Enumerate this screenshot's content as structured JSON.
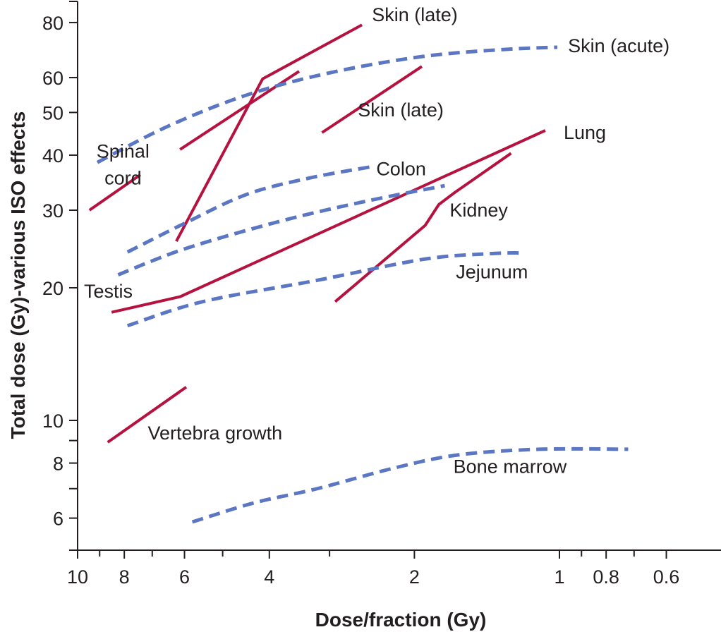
{
  "chart_data": {
    "type": "line",
    "title": "",
    "xlabel": "Dose/fraction (Gy)",
    "ylabel": "Total dose (Gy)-various ISO effects",
    "xscale": "log",
    "yscale": "log",
    "x_reversed": true,
    "xlim": [
      10,
      0.47
    ],
    "ylim": [
      5.0,
      98
    ],
    "grid": false,
    "legend": "none (curves labeled directly)",
    "x_ticks": [
      {
        "value": 10,
        "label": "10"
      },
      {
        "value": 9,
        "label": ""
      },
      {
        "value": 8,
        "label": "8"
      },
      {
        "value": 7,
        "label": ""
      },
      {
        "value": 6,
        "label": "6"
      },
      {
        "value": 5,
        "label": ""
      },
      {
        "value": 4,
        "label": "4"
      },
      {
        "value": 3,
        "label": ""
      },
      {
        "value": 2,
        "label": "2"
      },
      {
        "value": 1,
        "label": "1"
      },
      {
        "value": 0.9,
        "label": ""
      },
      {
        "value": 0.8,
        "label": "0.8"
      },
      {
        "value": 0.7,
        "label": ""
      },
      {
        "value": 0.6,
        "label": "0.6"
      }
    ],
    "y_ticks": [
      {
        "value": 80,
        "label": "80"
      },
      {
        "value": 60,
        "label": "60"
      },
      {
        "value": 50,
        "label": "50"
      },
      {
        "value": 40,
        "label": "40"
      },
      {
        "value": 30,
        "label": "30"
      },
      {
        "value": 20,
        "label": "20"
      },
      {
        "value": 10,
        "label": "10"
      },
      {
        "value": 9,
        "label": ""
      },
      {
        "value": 8,
        "label": "8"
      },
      {
        "value": 7,
        "label": ""
      },
      {
        "value": 6,
        "label": "6"
      }
    ],
    "colors": {
      "late_effect": "#b5123f",
      "acute_effect": "#5b76c2",
      "text": "#231f20"
    },
    "series": [
      {
        "name": "Skin (late)",
        "kind": "late",
        "style": "solid",
        "points": [
          [
            6.24,
            25.5
          ],
          [
            4.13,
            59.6
          ],
          [
            2.57,
            79.0
          ]
        ],
        "label": {
          "text": "Skin (late)",
          "at": [
            2.45,
            80.5
          ]
        }
      },
      {
        "name": "Spinal cord (upper)",
        "kind": "late",
        "style": "solid",
        "points": [
          [
            6.13,
            41.2
          ],
          [
            3.47,
            62.0
          ]
        ],
        "label": null
      },
      {
        "name": "Skin (late) 2",
        "kind": "late",
        "style": "solid",
        "points": [
          [
            3.11,
            45.0
          ],
          [
            1.93,
            63.6
          ]
        ],
        "label": {
          "text": "Skin (late)",
          "at": [
            2.62,
            49.0
          ]
        }
      },
      {
        "name": "Spinal cord",
        "kind": "late",
        "style": "solid",
        "points": [
          [
            9.45,
            30.0
          ],
          [
            7.41,
            36.1
          ]
        ],
        "label": {
          "text": "Spinal",
          "text2": "cord",
          "at": [
            8.05,
            39.5
          ]
        }
      },
      {
        "name": "Lung",
        "kind": "late",
        "style": "solid",
        "points": [
          [
            8.5,
            17.6
          ],
          [
            6.12,
            19.1
          ],
          [
            1.07,
            45.5
          ]
        ],
        "label": {
          "text": "Lung",
          "at": [
            0.98,
            43.5
          ]
        }
      },
      {
        "name": "Kidney",
        "kind": "late",
        "style": "solid",
        "points": [
          [
            2.92,
            18.6
          ],
          [
            1.9,
            27.7
          ],
          [
            1.78,
            30.9
          ],
          [
            1.65,
            32.9
          ],
          [
            1.26,
            40.4
          ]
        ],
        "label": {
          "text": "Kidney",
          "at": [
            1.69,
            29.0
          ]
        }
      },
      {
        "name": "Vertebra growth",
        "kind": "late",
        "style": "solid",
        "points": [
          [
            8.66,
            8.92
          ],
          [
            5.95,
            11.9
          ]
        ],
        "label": {
          "text": "Vertebra growth",
          "at": [
            7.15,
            9.05
          ]
        }
      },
      {
        "name": "Skin (acute)",
        "kind": "acute",
        "style": "dashed",
        "points": [
          [
            9.1,
            38.5
          ],
          [
            6.5,
            46.5
          ],
          [
            4.45,
            54.8
          ],
          [
            3.0,
            61.5
          ],
          [
            1.92,
            67.0
          ],
          [
            1.3,
            69.5
          ],
          [
            1.01,
            70.3
          ]
        ],
        "label": {
          "text": "Skin (acute)",
          "at": [
            0.96,
            68.5
          ]
        }
      },
      {
        "name": "Colon",
        "kind": "acute",
        "style": "dashed",
        "points": [
          [
            7.88,
            24.1
          ],
          [
            6.0,
            28.0
          ],
          [
            4.45,
            32.6
          ],
          [
            3.3,
            35.5
          ],
          [
            2.47,
            37.6
          ]
        ],
        "label": {
          "text": "Colon",
          "at": [
            2.4,
            36.0
          ]
        }
      },
      {
        "name": "Testis",
        "kind": "acute",
        "style": "dashed",
        "points": [
          [
            8.24,
            21.4
          ],
          [
            6.0,
            24.5
          ],
          [
            3.76,
            28.4
          ],
          [
            2.5,
            31.5
          ],
          [
            1.73,
            34.1
          ]
        ],
        "label": {
          "text": "Testis",
          "at": [
            9.7,
            19.0
          ]
        }
      },
      {
        "name": "Jejunum",
        "kind": "acute",
        "style": "dashed",
        "points": [
          [
            7.88,
            16.4
          ],
          [
            5.5,
            18.6
          ],
          [
            3.18,
            20.8
          ],
          [
            1.92,
            23.2
          ],
          [
            1.4,
            23.9
          ],
          [
            1.2,
            24.0
          ]
        ],
        "label": {
          "text": "Jejunum",
          "at": [
            1.64,
            21.0
          ]
        }
      },
      {
        "name": "Bone marrow",
        "kind": "acute",
        "style": "dashed",
        "points": [
          [
            5.78,
            5.88
          ],
          [
            4.3,
            6.5
          ],
          [
            3.18,
            7.0
          ],
          [
            2.2,
            7.8
          ],
          [
            1.62,
            8.35
          ],
          [
            1.1,
            8.6
          ],
          [
            0.72,
            8.6
          ]
        ],
        "label": {
          "text": "Bone marrow",
          "at": [
            1.66,
            7.6
          ]
        }
      }
    ]
  }
}
